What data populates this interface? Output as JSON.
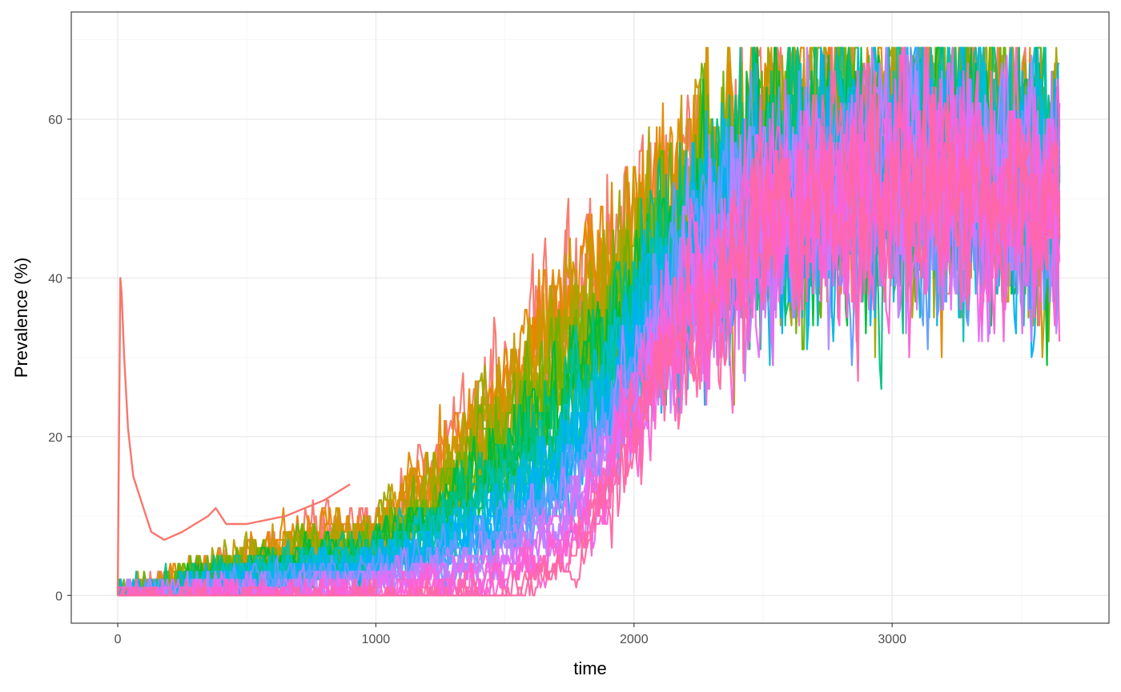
{
  "chart_data": {
    "type": "line",
    "title": "",
    "xlabel": "time",
    "ylabel": "Prevalence (%)",
    "xlim": [
      -180,
      3840
    ],
    "ylim": [
      -3.5,
      73.5
    ],
    "x_ticks": [
      0,
      1000,
      2000,
      3000
    ],
    "x_tick_labels": [
      "0",
      "1000",
      "2000",
      "3000"
    ],
    "y_ticks": [
      0,
      20,
      40,
      60
    ],
    "y_tick_labels": [
      "0",
      "20",
      "40",
      "60"
    ],
    "grid": true,
    "legend": "none",
    "series_count": 40,
    "series_note_x_range": [
      0,
      3650
    ],
    "series_palette": [
      "#F8766D",
      "#E58700",
      "#C99800",
      "#A3A500",
      "#6BB100",
      "#00BA38",
      "#00BF7D",
      "#00C0AF",
      "#00BCD8",
      "#00B0F6",
      "#619CFF",
      "#B983FF",
      "#E76BF3",
      "#FD61D1",
      "#FF67A4"
    ],
    "series_envelope": {
      "x": [
        0,
        500,
        1000,
        1250,
        1500,
        1750,
        2000,
        2250,
        2500,
        2750,
        3000,
        3250,
        3500,
        3650
      ],
      "earliest_series_y": [
        0,
        5,
        9,
        16,
        27,
        38,
        46,
        52,
        56,
        58,
        56,
        58,
        56,
        55
      ],
      "latest_series_y": [
        0,
        0,
        0,
        0,
        0,
        3,
        20,
        37,
        45,
        49,
        51,
        50,
        49,
        48
      ]
    },
    "highlight_series": {
      "name": "",
      "x": [
        0,
        10,
        15,
        25,
        40,
        60,
        90,
        130,
        180,
        250,
        300,
        350,
        380,
        420,
        500,
        650,
        800,
        900
      ],
      "y": [
        0,
        40,
        38,
        30,
        21,
        15,
        12,
        8,
        7,
        8,
        9,
        10,
        11,
        9,
        9,
        10,
        12,
        14
      ]
    }
  }
}
